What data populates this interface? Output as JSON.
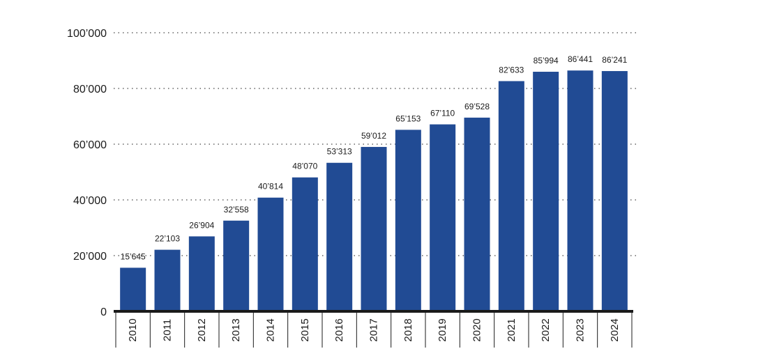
{
  "chart_data": {
    "type": "bar",
    "title": "",
    "xlabel": "",
    "ylabel": "",
    "categories": [
      "2010",
      "2011",
      "2012",
      "2013",
      "2014",
      "2015",
      "2016",
      "2017",
      "2018",
      "2019",
      "2020",
      "2021",
      "2022",
      "2023",
      "2024"
    ],
    "values": [
      15645,
      22103,
      26904,
      32558,
      40814,
      48070,
      53313,
      59012,
      65153,
      67110,
      69528,
      82633,
      85994,
      86441,
      86241
    ],
    "value_labels": [
      "15’645",
      "22’103",
      "26’904",
      "32’558",
      "40’814",
      "48’070",
      "53’313",
      "59’012",
      "65’153",
      "67’110",
      "69’528",
      "82’633",
      "85’994",
      "86’441",
      "86’241"
    ],
    "ylim": [
      0,
      100000
    ],
    "yticks": [
      0,
      20000,
      40000,
      60000,
      80000,
      100000
    ],
    "ytick_labels": [
      "0",
      "20’000",
      "40’000",
      "60’000",
      "80’000",
      "100’000"
    ],
    "grid": true,
    "bar_color": "#214B94",
    "axis_color": "#1a1a1a"
  }
}
